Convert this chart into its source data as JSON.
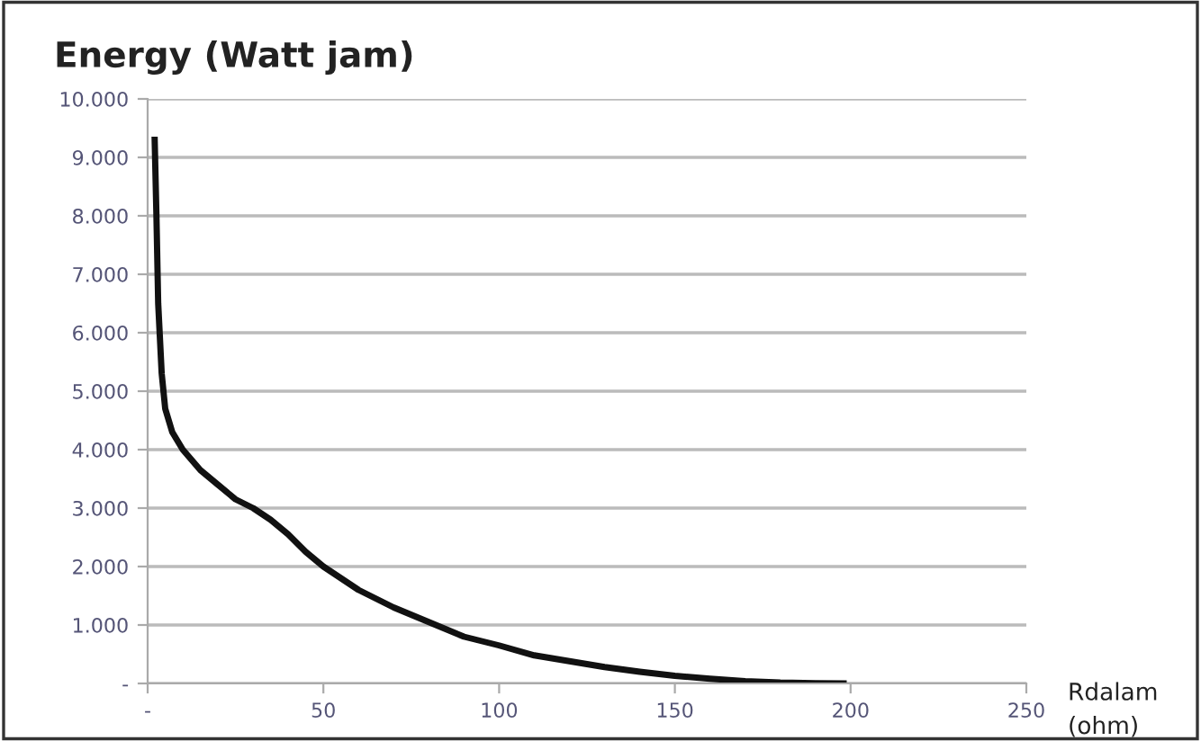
{
  "chart_data": {
    "type": "line",
    "ylabel": "Energy (Watt jam)",
    "xlabel": "Rdalam\n(ohm)",
    "x": [
      2,
      2.5,
      3,
      4,
      5,
      7,
      10,
      15,
      20,
      25,
      30,
      35,
      40,
      45,
      50,
      55,
      60,
      70,
      80,
      90,
      100,
      110,
      120,
      130,
      140,
      150,
      160,
      170,
      180,
      190,
      198
    ],
    "series": [
      {
        "color": "#111111",
        "values": [
          9300,
          8000,
          6500,
          5300,
          4700,
          4300,
          4000,
          3650,
          3400,
          3150,
          3000,
          2800,
          2550,
          2250,
          2000,
          1800,
          1600,
          1300,
          1050,
          800,
          650,
          480,
          380,
          280,
          200,
          130,
          80,
          40,
          15,
          5,
          0
        ]
      }
    ],
    "xlim": [
      0,
      250
    ],
    "xticks": [
      {
        "value": 0,
        "label": "-"
      },
      50,
      100,
      150,
      200,
      250
    ],
    "ylim": [
      0,
      10000
    ],
    "yticks": [
      {
        "value": 0,
        "label": "-"
      },
      {
        "value": 1000,
        "label": "1.000"
      },
      {
        "value": 2000,
        "label": "2.000"
      },
      {
        "value": 3000,
        "label": "3.000"
      },
      {
        "value": 4000,
        "label": "4.000"
      },
      {
        "value": 5000,
        "label": "5.000"
      },
      {
        "value": 6000,
        "label": "6.000"
      },
      {
        "value": 7000,
        "label": "7.000"
      },
      {
        "value": 8000,
        "label": "8.000"
      },
      {
        "value": 9000,
        "label": "9.000"
      },
      {
        "value": 10000,
        "label": "10.000"
      }
    ],
    "grid": "y",
    "marker": "none",
    "line_style": "solid",
    "legend": false
  }
}
